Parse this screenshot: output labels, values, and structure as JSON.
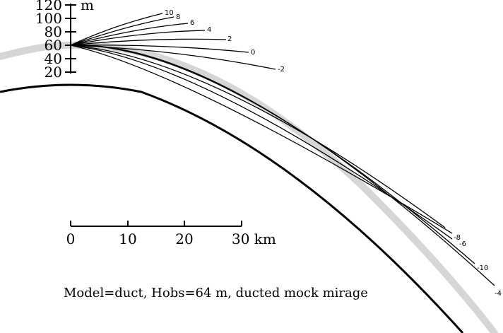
{
  "height_scale": {
    "ticks": [
      "120",
      "100",
      "80",
      "60",
      "40",
      "20"
    ],
    "unit": "m"
  },
  "distance_scale": {
    "ticks": [
      "0",
      "10",
      "20"
    ],
    "last_tick": "30 km"
  },
  "rays": [
    {
      "label": "10",
      "slope_ratio": 10
    },
    {
      "label": "8",
      "slope_ratio": 8
    },
    {
      "label": "6",
      "slope_ratio": 6
    },
    {
      "label": "4",
      "slope_ratio": 4
    },
    {
      "label": "2",
      "slope_ratio": 2
    },
    {
      "label": "0",
      "slope_ratio": 0
    },
    {
      "label": "-2",
      "slope_ratio": -2
    },
    {
      "label": "-8",
      "slope_ratio": -8
    },
    {
      "label": "-6",
      "slope_ratio": -6
    },
    {
      "label": "-10",
      "slope_ratio": -10
    },
    {
      "label": "-4",
      "slope_ratio": -4
    }
  ],
  "caption": "Model=duct, Hobs=64 m, ducted mock mirage"
}
